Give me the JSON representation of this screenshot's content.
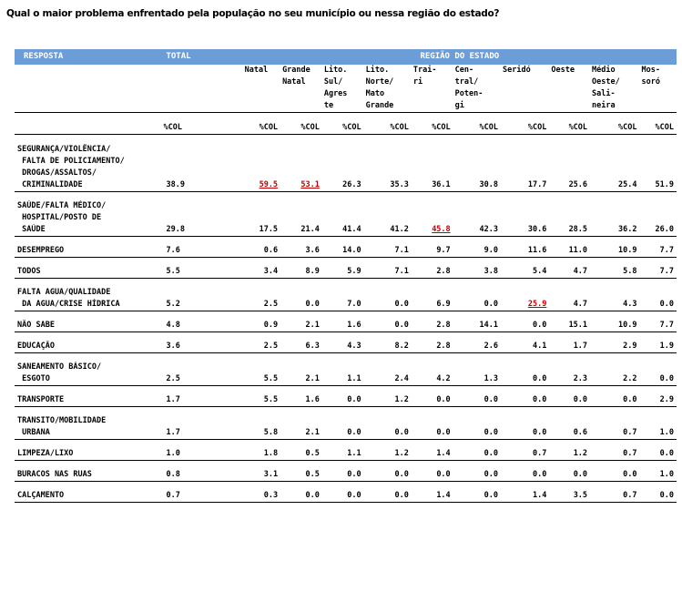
{
  "question": "Qual o maior problema enfrentado pela população no seu município ou nessa região do estado?",
  "header": {
    "resposta": "RESPOSTA",
    "total": "TOTAL",
    "regiao": "REGIÃO DO ESTADO"
  },
  "regions": [
    {
      "lines": [
        "Natal",
        "",
        "",
        ""
      ]
    },
    {
      "lines": [
        "Grande",
        "Natal",
        "",
        ""
      ]
    },
    {
      "lines": [
        "Lito.",
        "Sul/",
        "Agres",
        "te"
      ]
    },
    {
      "lines": [
        "Lito.",
        "Norte/",
        "Mato",
        "Grande"
      ]
    },
    {
      "lines": [
        "Trai-",
        "ri",
        "",
        ""
      ]
    },
    {
      "lines": [
        "Cen-",
        "tral/",
        "Poten-",
        "gi"
      ]
    },
    {
      "lines": [
        "Seridó",
        "",
        "",
        ""
      ]
    },
    {
      "lines": [
        "Oeste",
        "",
        "",
        ""
      ]
    },
    {
      "lines": [
        "Médio",
        "Oeste/",
        "Sali-",
        "neira"
      ]
    },
    {
      "lines": [
        "Mos-",
        "soró",
        "",
        ""
      ]
    }
  ],
  "col_label": "%COL",
  "rows": [
    {
      "labels": [
        "SEGURANÇA/VIOLÊNCIA/",
        " FALTA DE POLICIAMENTO/",
        " DROGAS/ASSALTOS/",
        " CRIMINALIDADE"
      ],
      "total": "38.9",
      "values": [
        "59.5",
        "53.1",
        "26.3",
        "35.3",
        "36.1",
        "30.8",
        "17.7",
        "25.6",
        "25.4",
        "51.9"
      ],
      "highlight": [
        0,
        1
      ]
    },
    {
      "labels": [
        "SAÚDE/FALTA MÉDICO/",
        " HOSPITAL/POSTO DE",
        " SAÚDE"
      ],
      "total": "29.8",
      "values": [
        "17.5",
        "21.4",
        "41.4",
        "41.2",
        "45.8",
        "42.3",
        "30.6",
        "28.5",
        "36.2",
        "26.0"
      ],
      "highlight": [
        4
      ]
    },
    {
      "labels": [
        "DESEMPREGO"
      ],
      "total": "7.6",
      "values": [
        "0.6",
        "3.6",
        "14.0",
        "7.1",
        "9.7",
        "9.0",
        "11.6",
        "11.0",
        "10.9",
        "7.7"
      ],
      "highlight": []
    },
    {
      "labels": [
        "TODOS"
      ],
      "total": "5.5",
      "values": [
        "3.4",
        "8.9",
        "5.9",
        "7.1",
        "2.8",
        "3.8",
        "5.4",
        "4.7",
        "5.8",
        "7.7"
      ],
      "highlight": []
    },
    {
      "labels": [
        "FALTA AGUA/QUALIDADE",
        " DA AGUA/CRISE HÍDRICA"
      ],
      "total": "5.2",
      "values": [
        "2.5",
        "0.0",
        "7.0",
        "0.0",
        "6.9",
        "0.0",
        "25.9",
        "4.7",
        "4.3",
        "0.0"
      ],
      "highlight": [
        6
      ]
    },
    {
      "labels": [
        "NÃO SABE"
      ],
      "total": "4.8",
      "values": [
        "0.9",
        "2.1",
        "1.6",
        "0.0",
        "2.8",
        "14.1",
        "0.0",
        "15.1",
        "10.9",
        "7.7"
      ],
      "highlight": []
    },
    {
      "labels": [
        "EDUCAÇÃO"
      ],
      "total": "3.6",
      "values": [
        "2.5",
        "6.3",
        "4.3",
        "8.2",
        "2.8",
        "2.6",
        "4.1",
        "1.7",
        "2.9",
        "1.9"
      ],
      "highlight": []
    },
    {
      "labels": [
        "SANEAMENTO BÁSICO/",
        " ESGOTO"
      ],
      "total": "2.5",
      "values": [
        "5.5",
        "2.1",
        "1.1",
        "2.4",
        "4.2",
        "1.3",
        "0.0",
        "2.3",
        "2.2",
        "0.0"
      ],
      "highlight": []
    },
    {
      "labels": [
        "TRANSPORTE"
      ],
      "total": "1.7",
      "values": [
        "5.5",
        "1.6",
        "0.0",
        "1.2",
        "0.0",
        "0.0",
        "0.0",
        "0.0",
        "0.0",
        "2.9"
      ],
      "highlight": []
    },
    {
      "labels": [
        "TRANSITO/MOBILIDADE",
        " URBANA"
      ],
      "total": "1.7",
      "values": [
        "5.8",
        "2.1",
        "0.0",
        "0.0",
        "0.0",
        "0.0",
        "0.0",
        "0.6",
        "0.7",
        "1.0"
      ],
      "highlight": []
    },
    {
      "labels": [
        "LIMPEZA/LIXO"
      ],
      "total": "1.0",
      "values": [
        "1.8",
        "0.5",
        "1.1",
        "1.2",
        "1.4",
        "0.0",
        "0.7",
        "1.2",
        "0.7",
        "0.0"
      ],
      "highlight": []
    },
    {
      "labels": [
        "BURACOS NAS RUAS"
      ],
      "total": "0.8",
      "values": [
        "3.1",
        "0.5",
        "0.0",
        "0.0",
        "0.0",
        "0.0",
        "0.0",
        "0.0",
        "0.0",
        "1.0"
      ],
      "highlight": []
    },
    {
      "labels": [
        "CALÇAMENTO"
      ],
      "total": "0.7",
      "values": [
        "0.3",
        "0.0",
        "0.0",
        "0.0",
        "1.4",
        "0.0",
        "1.4",
        "3.5",
        "0.7",
        "0.0"
      ],
      "highlight": []
    }
  ]
}
